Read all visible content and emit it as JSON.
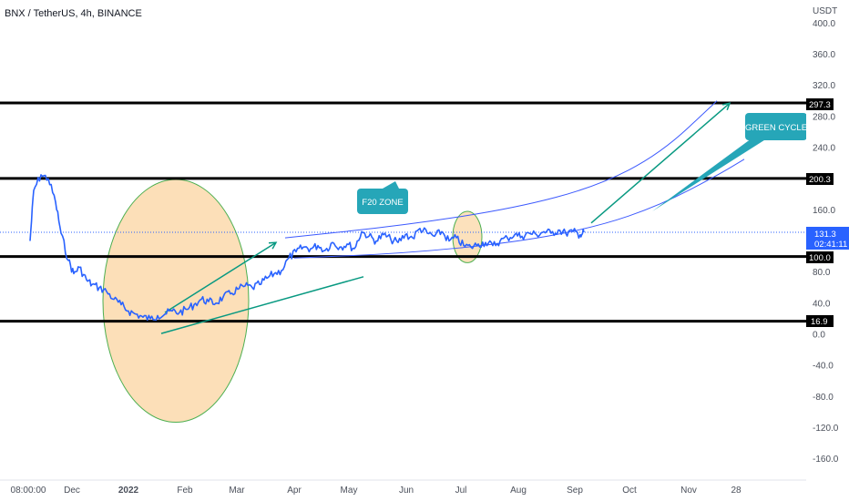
{
  "title": "BNX / TetherUS, 4h, BINANCE",
  "price_axis": {
    "unit": "USDT",
    "ticks": [
      "400.0",
      "360.0",
      "320.0",
      "280.0",
      "240.0",
      "160.0",
      "80.0",
      "40.0",
      "0.0",
      "-40.0",
      "-80.0",
      "-120.0",
      "-160.0"
    ]
  },
  "time_axis": {
    "ticks": [
      "08:00:00",
      "Dec",
      "2022",
      "Feb",
      "Mar",
      "Apr",
      "May",
      "Jun",
      "Jul",
      "Aug",
      "Sep",
      "Oct",
      "Nov",
      "28"
    ]
  },
  "badges": {
    "level_297": "297.3",
    "level_200": "200.3",
    "current_price": "131.3",
    "countdown": "02:41:11",
    "level_100": "100.0",
    "level_16": "16.9"
  },
  "annotations": {
    "f20_zone": "F20 ZONE",
    "green_cycle": "GREEN CYCLE"
  },
  "colors": {
    "price_line": "#2962ff",
    "trend_line": "#089981",
    "channel_line": "#3d5afe",
    "ellipse_fill": "#fbd7a6",
    "ellipse_stroke": "#4caf50",
    "callout_fill": "#26a6b8",
    "current_badge": "#2962ff",
    "level_line": "#000000"
  },
  "chart_data": {
    "type": "line",
    "title": "BNX / TetherUS, 4h, BINANCE",
    "ylabel": "USDT",
    "ylim": [
      -180,
      410
    ],
    "grid": false,
    "series": [
      {
        "name": "BNX / TetherUS",
        "x": [
          "Nov 8",
          "Nov 10",
          "Nov 14",
          "Nov 18",
          "Nov 22",
          "Nov 25",
          "Nov 29",
          "Dec 2",
          "Dec 5",
          "Dec 9",
          "Dec 12",
          "Dec 16",
          "Dec 20",
          "Dec 24",
          "Dec 28",
          "Jan 1",
          "Jan 5",
          "Jan 9",
          "Jan 13",
          "Jan 17",
          "Jan 21",
          "Jan 25",
          "Jan 29",
          "Feb 2",
          "Feb 6",
          "Feb 10",
          "Feb 14",
          "Feb 18",
          "Feb 22",
          "Feb 26",
          "Mar 2",
          "Mar 6",
          "Mar 10",
          "Mar 14",
          "Mar 18",
          "Mar 22",
          "Mar 26",
          "Mar 30",
          "Apr 3",
          "Apr 7",
          "Apr 11",
          "Apr 15",
          "Apr 19",
          "Apr 23",
          "Apr 27",
          "May 1",
          "May 5",
          "May 9",
          "May 13",
          "May 17",
          "May 21",
          "May 25",
          "May 29",
          "Jun 2",
          "Jun 6",
          "Jun 10",
          "Jun 14",
          "Jun 18",
          "Jun 22",
          "Jun 26",
          "Jun 30",
          "Jul 4",
          "Jul 8",
          "Jul 12",
          "Jul 16",
          "Jul 20",
          "Jul 24",
          "Jul 28",
          "Aug 1",
          "Aug 5",
          "Aug 9",
          "Aug 13",
          "Aug 17",
          "Aug 21",
          "Aug 25",
          "Aug 29",
          "Sep 2",
          "Sep 6",
          "Sep 8"
        ],
        "values": [
          120,
          185,
          205,
          200,
          170,
          130,
          95,
          78,
          86,
          70,
          64,
          60,
          55,
          45,
          38,
          30,
          26,
          22,
          20,
          24,
          26,
          30,
          28,
          32,
          38,
          45,
          42,
          40,
          48,
          52,
          58,
          62,
          60,
          64,
          72,
          78,
          82,
          98,
          106,
          112,
          110,
          114,
          108,
          118,
          112,
          116,
          110,
          132,
          126,
          120,
          128,
          122,
          118,
          128,
          124,
          136,
          130,
          126,
          132,
          120,
          124,
          114,
          112,
          116,
          118,
          114,
          120,
          124,
          128,
          126,
          130,
          128,
          132,
          130,
          134,
          130,
          132,
          128,
          131
        ]
      }
    ],
    "horizontal_levels": [
      297.3,
      200.3,
      100.0,
      16.9
    ],
    "channel": {
      "upper": {
        "x": [
          "Mar 28",
          "Jun 1",
          "Aug 1",
          "Sep 15",
          "Oct 20",
          "Nov 20"
        ],
        "values": [
          124,
          140,
          162,
          190,
          232,
          300
        ]
      },
      "lower": {
        "x": [
          "Apr 2",
          "Jun 1",
          "Aug 1",
          "Sep 15",
          "Oct 20",
          "Nov 20",
          "Dec 5"
        ],
        "values": [
          98,
          104,
          118,
          138,
          166,
          204,
          225
        ]
      }
    },
    "trend_arrows": [
      {
        "from": {
          "x": "Jan 21",
          "y": 28
        },
        "to": {
          "x": "Mar 23",
          "y": 118
        }
      },
      {
        "from": {
          "x": "Sep 12",
          "y": 143
        },
        "to": {
          "x": "Nov 27",
          "y": 297
        }
      }
    ],
    "trend_segments": [
      {
        "from": {
          "x": "Jan 19",
          "y": 1
        },
        "to": {
          "x": "May 10",
          "y": 74
        }
      }
    ],
    "zones": [
      {
        "center": {
          "x": "Jan 27",
          "y": 43
        },
        "rx_days": 40,
        "ry_value": 156
      },
      {
        "center": {
          "x": "Jul 6",
          "y": 125
        },
        "rx_days": 8,
        "ry_value": 33
      }
    ]
  }
}
